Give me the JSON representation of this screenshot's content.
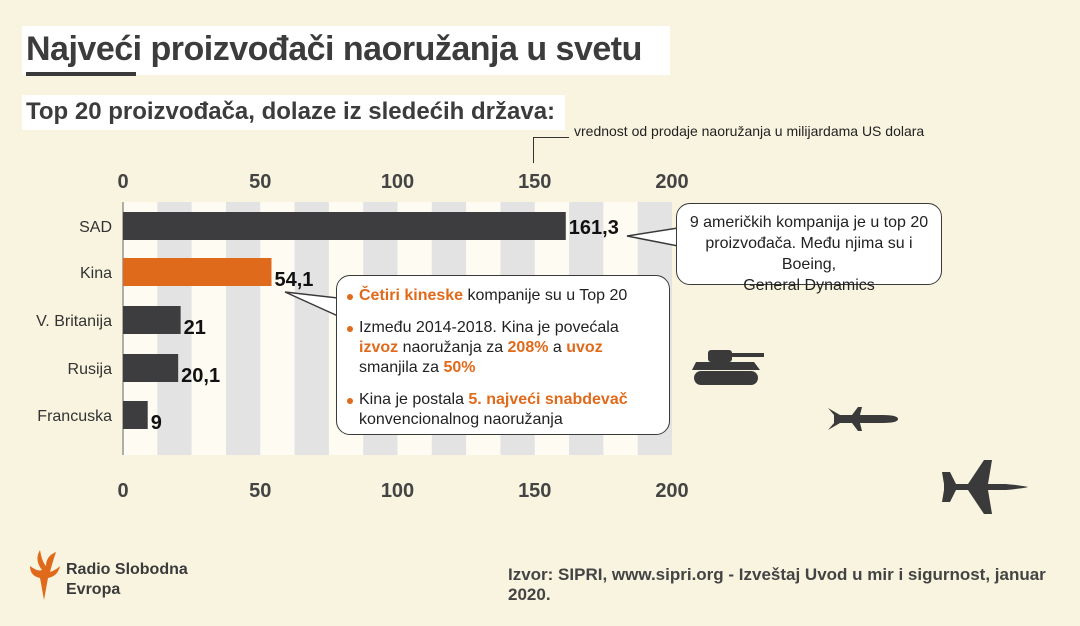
{
  "title": "Najveći proizvođači naoružanja u svetu",
  "subtitle": "Top 20 proizvođača, dolaze iz sledećih država:",
  "unit_note": "vrednost od prodaje naoružanja u milijardama US dolara",
  "colors": {
    "dark_bar": "#3d3d3f",
    "highlight_bar": "#e06a1b",
    "stripe": "#e3e3e3",
    "accent": "#e06a1b"
  },
  "chart_data": {
    "type": "bar",
    "orientation": "horizontal",
    "categories": [
      "SAD",
      "Kina",
      "V. Britanija",
      "Rusija",
      "Francuska"
    ],
    "values": [
      161.3,
      54.1,
      21,
      20.1,
      9
    ],
    "value_labels": [
      "161,3",
      "54,1",
      "21",
      "20,1",
      "9"
    ],
    "highlight": "Kina",
    "xlim": [
      0,
      200
    ],
    "xticks": [
      0,
      50,
      100,
      150,
      200
    ],
    "xtick_labels": [
      "0",
      "50",
      "100",
      "150",
      "200"
    ],
    "axis_positions": [
      "top",
      "bottom"
    ]
  },
  "callouts": {
    "usa": {
      "line1": "9 američkih kompanija je u top 20",
      "line2": "proizvođača. Među njima su i Boeing,",
      "line3": "General Dynamics"
    },
    "china": {
      "b1_hl": "Četiri kineske",
      "b1_rest": " kompanije su u Top 20",
      "b2_a": "Između 2014-2018. Kina je povećala ",
      "b2_hl1": "izvoz",
      "b2_b": " naoružanja za ",
      "b2_hl2": "208%",
      "b2_c": " a ",
      "b2_hl3": "uvoz",
      "b2_d": " smanjila za ",
      "b2_hl4": "50%",
      "b3_a": "Kina je postala ",
      "b3_hl": "5. najveći snabdevač",
      "b3_b": " konvencionalnog naoružanja"
    }
  },
  "logo": {
    "line1": "Radio Slobodna",
    "line2": "Evropa"
  },
  "source": "Izvor: SIPRI, www.sipri.org - Izveštaj Uvod u mir i sigurnost, januar 2020.",
  "icons": [
    "tank-icon",
    "missile-icon",
    "fighter-jet-icon"
  ]
}
